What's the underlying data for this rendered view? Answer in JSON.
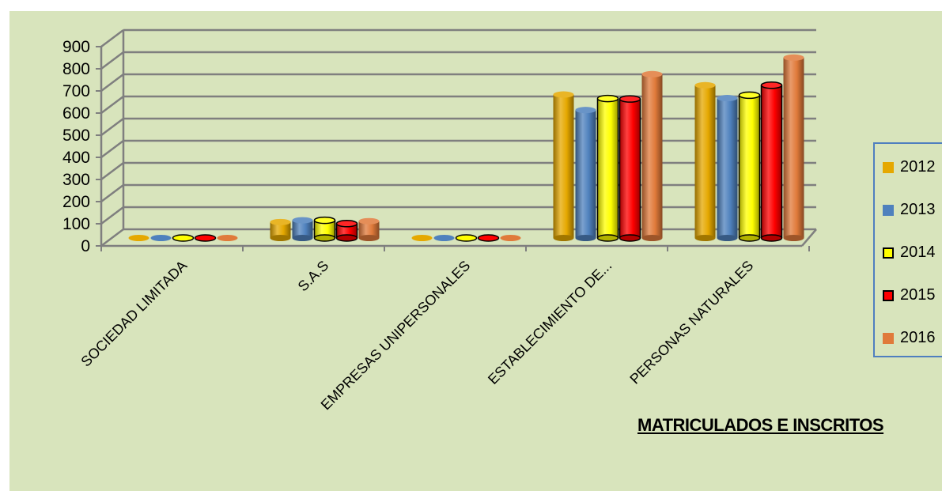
{
  "chart_data": {
    "type": "bar",
    "title": "MATRICULADOS E INSCRITOS",
    "categories": [
      "SOCIEDAD LIMITADA",
      "S.A.S",
      "EMPRESAS UNIPERSONALES",
      "ESTABLECIMIENTO DE...",
      "PERSONAS NATURALES"
    ],
    "series": [
      {
        "name": "2012",
        "color": "#e5a800",
        "values": [
          0,
          72,
          0,
          648,
          690
        ]
      },
      {
        "name": "2013",
        "color": "#4f81bd",
        "values": [
          0,
          80,
          0,
          578,
          632
        ]
      },
      {
        "name": "2014",
        "color": "#ffff00",
        "values": [
          5,
          80,
          4,
          630,
          645
        ]
      },
      {
        "name": "2015",
        "color": "#ff0000",
        "values": [
          5,
          65,
          4,
          628,
          690
        ]
      },
      {
        "name": "2016",
        "color": "#e07a3a",
        "values": [
          0,
          76,
          0,
          740,
          815
        ]
      }
    ],
    "yticks": [
      "0",
      "100",
      "200",
      "300",
      "400",
      "500",
      "600",
      "700",
      "800",
      "900"
    ],
    "ylim": [
      0,
      900
    ],
    "grid": true,
    "legend_position": "right"
  }
}
